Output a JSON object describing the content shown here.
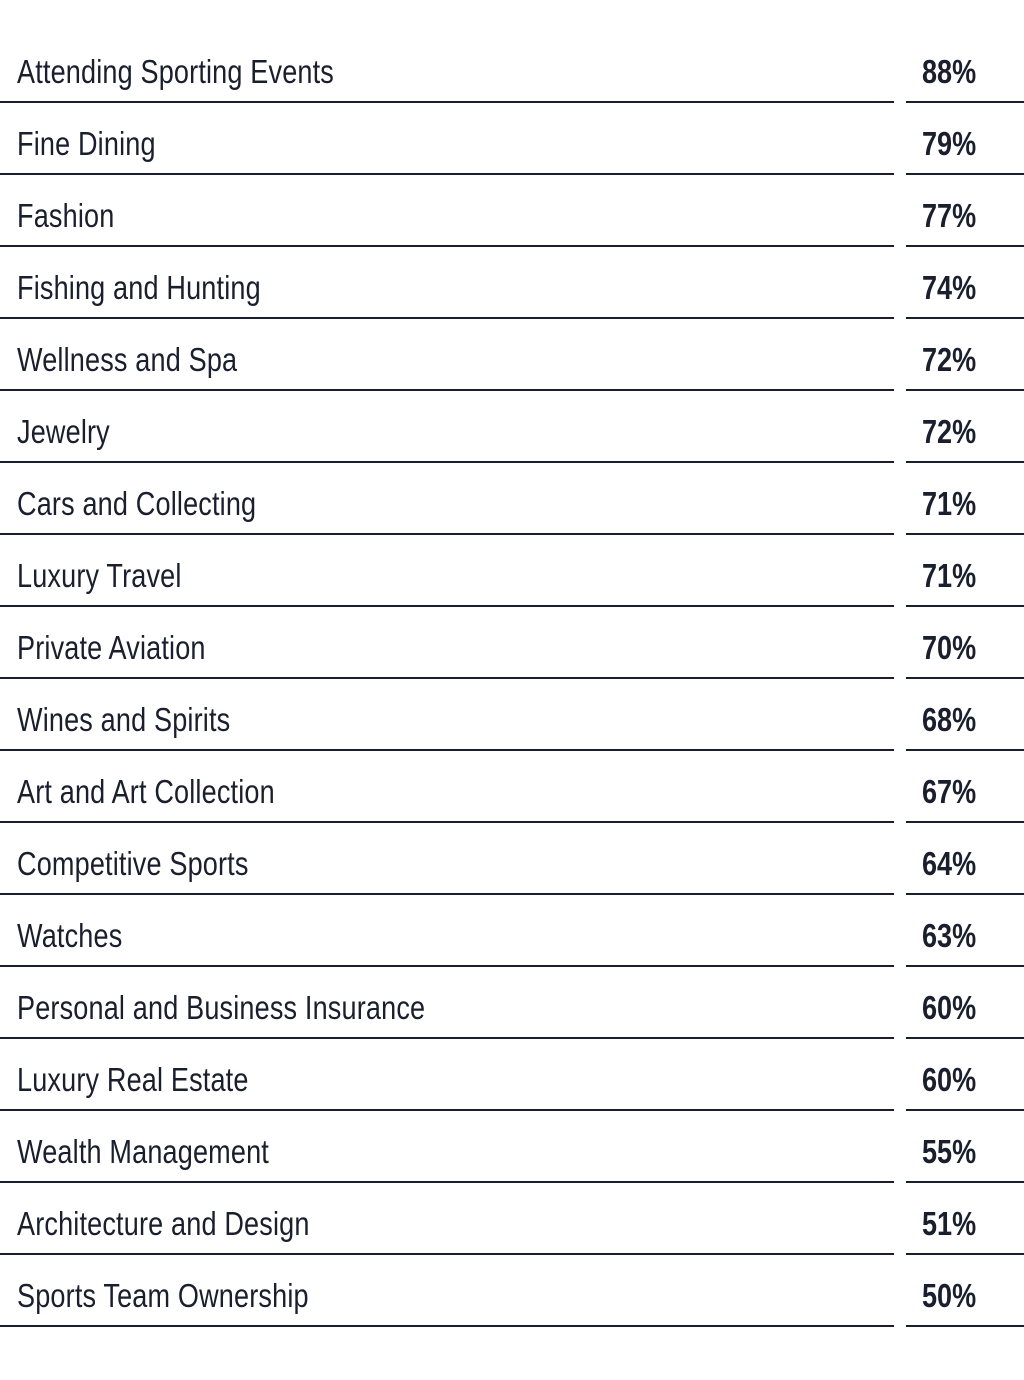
{
  "rows": [
    {
      "label": "Attending Sporting Events",
      "value": "88%"
    },
    {
      "label": "Fine Dining",
      "value": "79%"
    },
    {
      "label": "Fashion",
      "value": "77%"
    },
    {
      "label": "Fishing and Hunting",
      "value": "74%"
    },
    {
      "label": "Wellness and Spa",
      "value": "72%"
    },
    {
      "label": "Jewelry",
      "value": "72%"
    },
    {
      "label": "Cars and Collecting",
      "value": "71%"
    },
    {
      "label": "Luxury Travel",
      "value": "71%"
    },
    {
      "label": "Private Aviation",
      "value": "70%"
    },
    {
      "label": "Wines and Spirits",
      "value": "68%"
    },
    {
      "label": "Art and Art Collection",
      "value": "67%"
    },
    {
      "label": "Competitive Sports",
      "value": "64%"
    },
    {
      "label": "Watches",
      "value": "63%"
    },
    {
      "label": "Personal and Business Insurance",
      "value": "60%"
    },
    {
      "label": "Luxury Real Estate",
      "value": "60%"
    },
    {
      "label": "Wealth Management",
      "value": "55%"
    },
    {
      "label": "Architecture and Design",
      "value": "51%"
    },
    {
      "label": "Sports Team Ownership",
      "value": "50%"
    }
  ],
  "colors": {
    "text": "#1a1f2e",
    "rule": "#1a1f2e",
    "background": "#ffffff"
  }
}
